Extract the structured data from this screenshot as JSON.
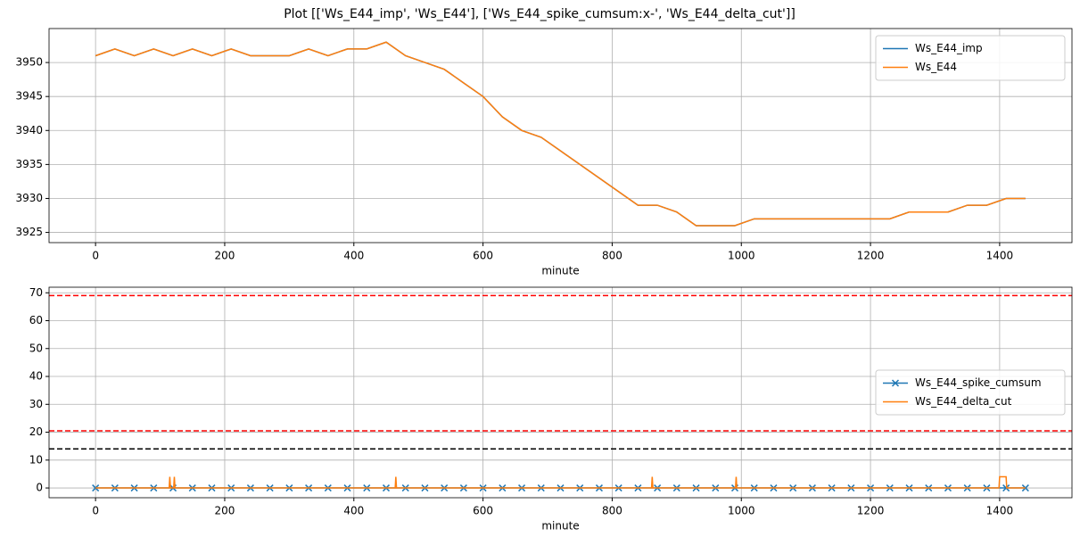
{
  "title": "Plot [['Ws_E44_imp', 'Ws_E44'], ['Ws_E44_spike_cumsum:x-', 'Ws_E44_delta_cut']]",
  "chart_data": [
    {
      "type": "line",
      "x_label": "minute",
      "grid": true,
      "legend": "upper right",
      "xlim": [
        -72,
        1512
      ],
      "xticks": [
        0,
        200,
        400,
        600,
        800,
        1000,
        1200,
        1400
      ],
      "ylim": [
        3923.5,
        3955
      ],
      "yticks": [
        3925,
        3930,
        3935,
        3940,
        3945,
        3950
      ],
      "x": [
        0,
        30,
        60,
        90,
        120,
        150,
        180,
        210,
        240,
        270,
        300,
        330,
        360,
        390,
        420,
        450,
        480,
        510,
        540,
        570,
        600,
        630,
        660,
        690,
        720,
        750,
        780,
        810,
        840,
        870,
        900,
        930,
        960,
        990,
        1020,
        1050,
        1080,
        1110,
        1140,
        1170,
        1200,
        1230,
        1260,
        1290,
        1320,
        1350,
        1380,
        1410,
        1440
      ],
      "series": [
        {
          "name": "Ws_E44_imp",
          "color": "#1f77b4",
          "values": [
            3951,
            3952,
            3951,
            3952,
            3951,
            3952,
            3951,
            3952,
            3951,
            3951,
            3951,
            3952,
            3951,
            3952,
            3952,
            3953,
            3951,
            3950,
            3949,
            3947,
            3945,
            3942,
            3940,
            3939,
            3937,
            3935,
            3933,
            3931,
            3929,
            3929,
            3928,
            3926,
            3926,
            3926,
            3927,
            3927,
            3927,
            3927,
            3927,
            3927,
            3927,
            3927,
            3928,
            3928,
            3928,
            3929,
            3929,
            3930,
            3930
          ]
        },
        {
          "name": "Ws_E44",
          "color": "#ff7f0e",
          "values": [
            3951,
            3952,
            3951,
            3952,
            3951,
            3952,
            3951,
            3952,
            3951,
            3951,
            3951,
            3952,
            3951,
            3952,
            3952,
            3953,
            3951,
            3950,
            3949,
            3947,
            3945,
            3942,
            3940,
            3939,
            3937,
            3935,
            3933,
            3931,
            3929,
            3929,
            3928,
            3926,
            3926,
            3926,
            3927,
            3927,
            3927,
            3927,
            3927,
            3927,
            3927,
            3927,
            3928,
            3928,
            3928,
            3929,
            3929,
            3930,
            3930
          ]
        }
      ]
    },
    {
      "type": "line",
      "x_label": "minute",
      "grid": true,
      "legend": "center right",
      "xlim": [
        -72,
        1512
      ],
      "xticks": [
        0,
        200,
        400,
        600,
        800,
        1000,
        1200,
        1400
      ],
      "ylim": [
        -3.5,
        72
      ],
      "yticks": [
        0,
        10,
        20,
        30,
        40,
        50,
        60,
        70
      ],
      "hlines": [
        {
          "value": 69,
          "color": "#ff0000"
        },
        {
          "value": 20.5,
          "color": "#ff0000"
        },
        {
          "value": 14,
          "color": "#000000"
        }
      ],
      "series": [
        {
          "name": "Ws_E44_spike_cumsum",
          "color": "#1f77b4",
          "marker": "x",
          "x": [
            0,
            30,
            60,
            90,
            120,
            150,
            180,
            210,
            240,
            270,
            300,
            330,
            360,
            390,
            420,
            450,
            480,
            510,
            540,
            570,
            600,
            630,
            660,
            690,
            720,
            750,
            780,
            810,
            840,
            870,
            900,
            930,
            960,
            990,
            1020,
            1050,
            1080,
            1110,
            1140,
            1170,
            1200,
            1230,
            1260,
            1290,
            1320,
            1350,
            1380,
            1410,
            1440
          ],
          "values": [
            0,
            0,
            0,
            0,
            0,
            0,
            0,
            0,
            0,
            0,
            0,
            0,
            0,
            0,
            0,
            0,
            0,
            0,
            0,
            0,
            0,
            0,
            0,
            0,
            0,
            0,
            0,
            0,
            0,
            0,
            0,
            0,
            0,
            0,
            0,
            0,
            0,
            0,
            0,
            0,
            0,
            0,
            0,
            0,
            0,
            0,
            0,
            0,
            0
          ]
        },
        {
          "name": "Ws_E44_delta_cut",
          "color": "#ff7f0e",
          "x": [
            0,
            114,
            115,
            116,
            121,
            122,
            123,
            464,
            465,
            466,
            861,
            862,
            863,
            991,
            992,
            993,
            1399,
            1400,
            1410,
            1411,
            1440
          ],
          "values": [
            0,
            0,
            4,
            0,
            0,
            4,
            0,
            0,
            4,
            0,
            0,
            4,
            0,
            0,
            4,
            0,
            0,
            4,
            4,
            0,
            0
          ]
        }
      ]
    }
  ]
}
